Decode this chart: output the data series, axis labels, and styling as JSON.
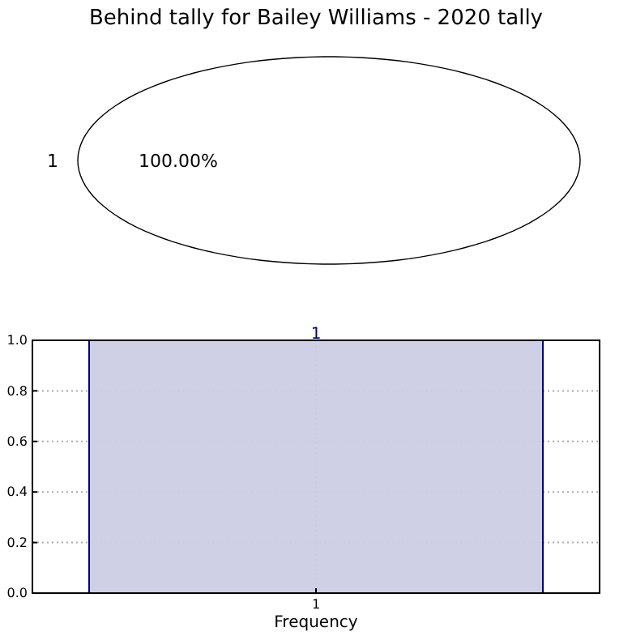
{
  "chart_data": [
    {
      "type": "pie",
      "title": "Behind tally for Bailey Williams - 2020 tally",
      "categories": [
        "1"
      ],
      "values": [
        100
      ],
      "colors": [
        "#ffffff"
      ],
      "value_labels": [
        "100.00%"
      ]
    },
    {
      "type": "bar",
      "xlabel": "Frequency",
      "categories": [
        "1"
      ],
      "values": [
        1
      ],
      "color": "#ccccE4",
      "ylim": [
        0,
        1
      ],
      "yticks": [
        {
          "value": 0,
          "label": "0.0"
        },
        {
          "value": 0.2,
          "label": "0.2"
        },
        {
          "value": 0.4,
          "label": "0.4"
        },
        {
          "value": 0.6,
          "label": "0.6"
        },
        {
          "value": 0.8,
          "label": "0.8"
        },
        {
          "value": 1,
          "label": "1.0"
        }
      ],
      "grid": true,
      "data_labels": true
    }
  ]
}
